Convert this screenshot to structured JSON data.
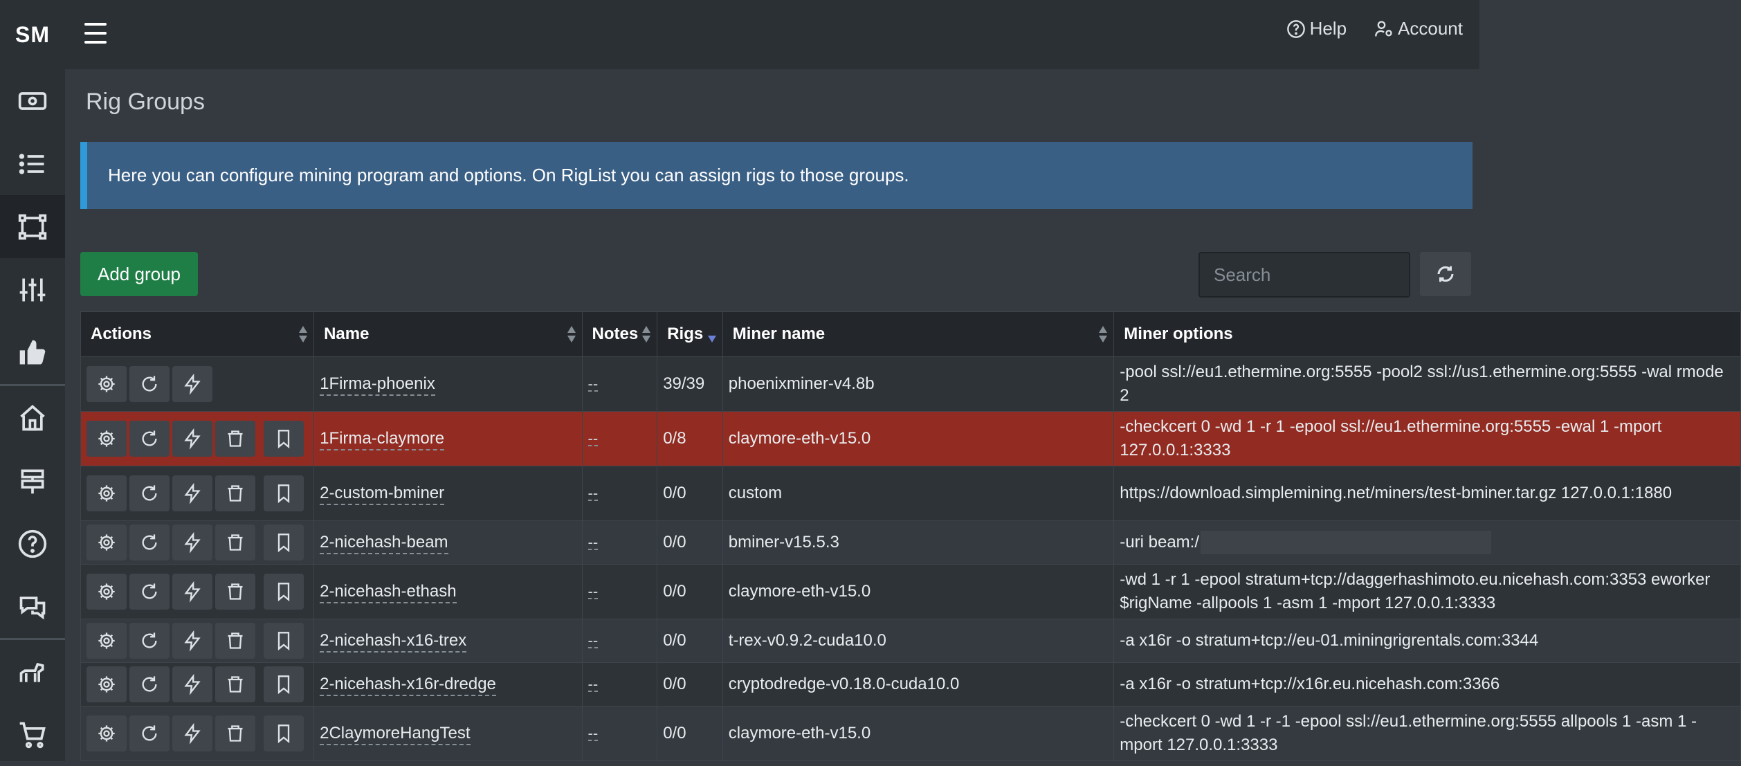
{
  "brand": "SM",
  "topnav": {
    "help": "Help",
    "account": "Account"
  },
  "sidebar": {
    "items": [
      {
        "icon": "money-icon"
      },
      {
        "icon": "list-icon"
      },
      {
        "icon": "rig-groups-icon",
        "active": true
      },
      {
        "icon": "sliders-icon"
      },
      {
        "icon": "thumbs-up-icon"
      },
      {
        "icon": "home-icon"
      },
      {
        "icon": "signpost-icon"
      },
      {
        "icon": "question-icon"
      },
      {
        "icon": "chat-icon"
      },
      {
        "icon": "horse-icon"
      },
      {
        "icon": "cart-icon"
      }
    ]
  },
  "page": {
    "title": "Rig Groups",
    "info": "Here you can configure mining program and options. On RigList you can assign rigs to those groups.",
    "add_button": "Add group",
    "search_placeholder": "Search"
  },
  "table": {
    "headers": [
      "Actions",
      "Name",
      "Notes",
      "Rigs",
      "Miner name",
      "Miner options"
    ],
    "rows": [
      {
        "name": "1Firma-phoenix",
        "notes": "--",
        "rigs": "39/39",
        "miner": "phoenixminer-v4.8b",
        "options": "-pool ssl://eu1.ethermine.org:5555 -pool2 ssl://us1.ethermine.org:5555 -wal rmode 2",
        "full": false,
        "danger": false
      },
      {
        "name": "1Firma-claymore",
        "notes": "--",
        "rigs": "0/8",
        "miner": "claymore-eth-v15.0",
        "options": "-checkcert 0 -wd 1 -r 1 -epool ssl://eu1.ethermine.org:5555 -ewal 1 -mport 127.0.0.1:3333",
        "full": true,
        "danger": true
      },
      {
        "name": "2-custom-bminer",
        "notes": "--",
        "rigs": "0/0",
        "miner": "custom",
        "options": "https://download.simplemining.net/miners/test-bminer.tar.gz 127.0.0.1:1880",
        "full": true,
        "danger": false
      },
      {
        "name": "2-nicehash-beam",
        "notes": "--",
        "rigs": "0/0",
        "miner": "bminer-v15.5.3",
        "options": "-uri beam:/",
        "full": true,
        "danger": false,
        "redacted": true
      },
      {
        "name": "2-nicehash-ethash",
        "notes": "--",
        "rigs": "0/0",
        "miner": "claymore-eth-v15.0",
        "options": "-wd 1 -r 1 -epool stratum+tcp://daggerhashimoto.eu.nicehash.com:3353 eworker $rigName -allpools 1 -asm 1 -mport 127.0.0.1:3333",
        "full": true,
        "danger": false
      },
      {
        "name": "2-nicehash-x16-trex",
        "notes": "--",
        "rigs": "0/0",
        "miner": "t-rex-v0.9.2-cuda10.0",
        "options": "-a x16r -o stratum+tcp://eu-01.miningrigrentals.com:3344",
        "full": true,
        "danger": false
      },
      {
        "name": "2-nicehash-x16r-dredge",
        "notes": "--",
        "rigs": "0/0",
        "miner": "cryptodredge-v0.18.0-cuda10.0",
        "options": "-a x16r -o stratum+tcp://x16r.eu.nicehash.com:3366",
        "full": true,
        "danger": false
      },
      {
        "name": "2ClaymoreHangTest",
        "notes": "--",
        "rigs": "0/0",
        "miner": "claymore-eth-v15.0",
        "options": "-checkcert 0 -wd 1 -r -1 -epool ssl://eu1.ethermine.org:5555 allpools 1 -asm 1 -mport 127.0.0.1:3333",
        "full": true,
        "danger": false
      }
    ]
  }
}
